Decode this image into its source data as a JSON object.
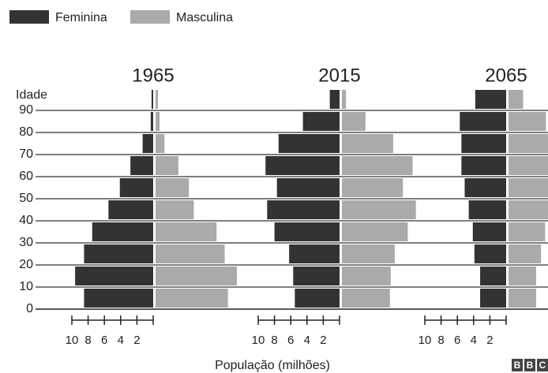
{
  "chart_data": [
    {
      "type": "pyramid",
      "title": "1965",
      "ylabel": "Idade",
      "ylim": [
        0,
        100
      ],
      "yticks": [
        0,
        10,
        20,
        30,
        40,
        50,
        60,
        70,
        80,
        90
      ],
      "xlim": [
        0,
        10
      ],
      "xticks": [
        10,
        8,
        6,
        4,
        2
      ],
      "series": [
        {
          "name": "Feminina",
          "color": "#333333",
          "values": [
            8.5,
            9.6,
            8.5,
            7.5,
            5.5,
            4.1,
            2.8,
            1.3,
            0.3,
            0.2
          ]
        },
        {
          "name": "Masculina",
          "color": "#aaaaaa",
          "values": [
            8.9,
            10.0,
            8.5,
            7.5,
            4.7,
            4.1,
            2.8,
            1.1,
            0.5,
            0.3
          ]
        }
      ]
    },
    {
      "type": "pyramid",
      "title": "2015",
      "ylim": [
        0,
        100
      ],
      "xlim": [
        0,
        10
      ],
      "xticks": [
        10,
        8,
        6,
        4,
        2
      ],
      "series": [
        {
          "name": "Feminina",
          "color": "#333333",
          "values": [
            5.5,
            5.7,
            6.2,
            8.0,
            8.9,
            7.7,
            9.1,
            7.5,
            4.5,
            1.2
          ]
        },
        {
          "name": "Masculina",
          "color": "#aaaaaa",
          "values": [
            5.9,
            6.0,
            6.5,
            8.1,
            9.1,
            7.5,
            8.7,
            6.3,
            2.9,
            0.5
          ]
        }
      ]
    },
    {
      "type": "pyramid",
      "title": "2065",
      "ylim": [
        0,
        100
      ],
      "xlim": [
        0,
        10
      ],
      "xticks": [
        10,
        8,
        6,
        4,
        2
      ],
      "series": [
        {
          "name": "Feminina",
          "color": "#333333",
          "values": [
            3.2,
            3.2,
            3.9,
            4.1,
            4.6,
            5.1,
            5.5,
            5.5,
            5.7,
            3.8
          ]
        },
        {
          "name": "Masculina",
          "color": "#aaaaaa",
          "values": [
            3.4,
            3.4,
            4.0,
            4.5,
            5.0,
            5.0,
            5.0,
            5.0,
            4.6,
            1.8
          ]
        }
      ]
    }
  ],
  "xlabel": "População (milhões)",
  "source": "BBC"
}
